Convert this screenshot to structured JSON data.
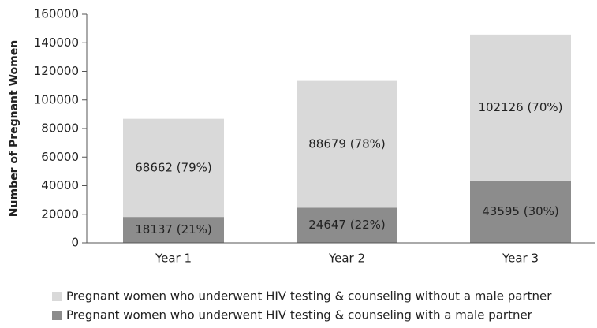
{
  "chart_data": {
    "type": "stacked_bar",
    "y_label": "Number of Pregnant Women",
    "categories": [
      "Year 1",
      "Year 2",
      "Year 3"
    ],
    "series": [
      {
        "name": "Pregnant women who underwent HIV testing & counseling with a male partner",
        "color": "#8c8c8c",
        "values": [
          18137,
          24647,
          43595
        ],
        "value_labels": [
          "18137  (21%)",
          "24647 (22%)",
          "43595 (30%)"
        ]
      },
      {
        "name": "Pregnant women who underwent HIV testing & counseling without a male partner",
        "color": "#d9d9d9",
        "values": [
          68662,
          88679,
          102126
        ],
        "value_labels": [
          "68662 (79%)",
          "88679 (78%)",
          "102126 (70%)"
        ]
      }
    ],
    "ylim": [
      0,
      160000
    ],
    "yticks": [
      0,
      20000,
      40000,
      60000,
      80000,
      100000,
      120000,
      140000,
      160000
    ]
  }
}
